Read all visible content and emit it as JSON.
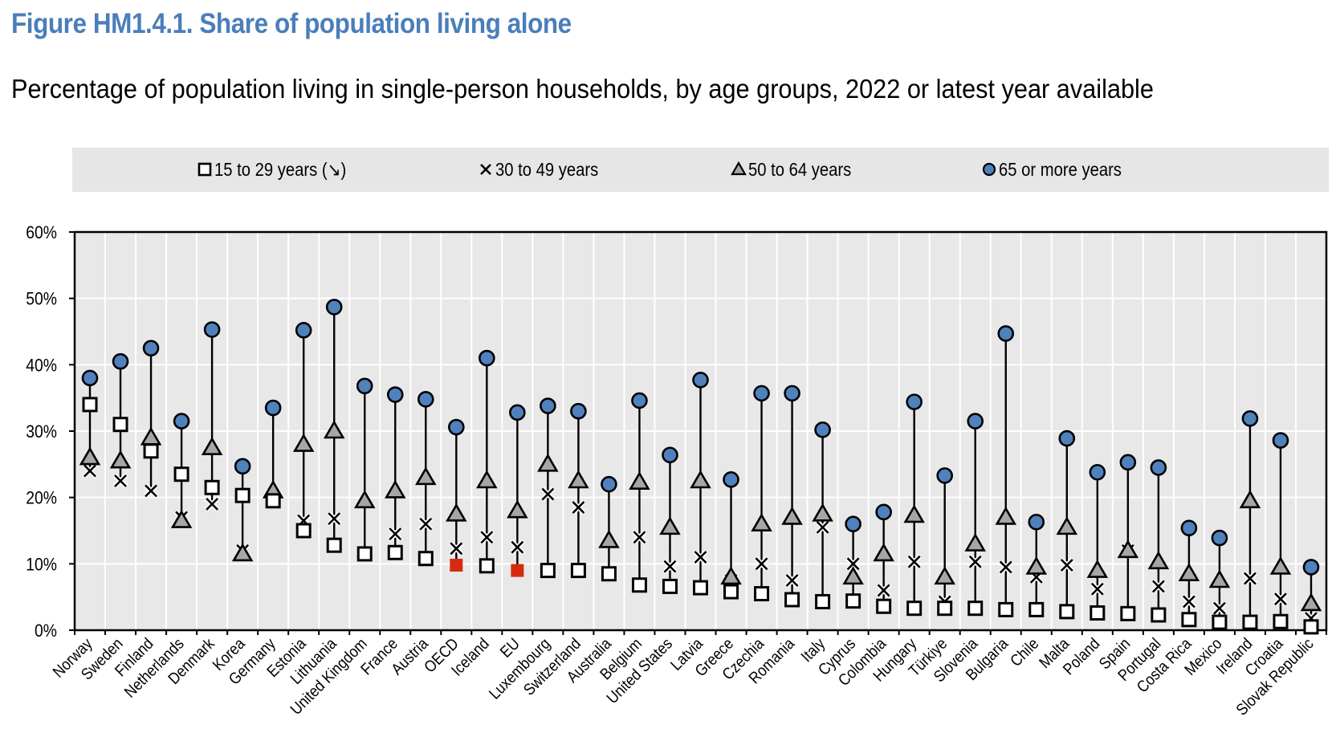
{
  "chart_data": {
    "type": "scatter",
    "title": "Figure HM1.4.1. Share of population living alone",
    "subtitle": "Percentage of population living in single-person households, by age groups, 2022 or latest year available",
    "ylim": [
      0,
      60
    ],
    "yticks": [
      "0%",
      "10%",
      "20%",
      "30%",
      "40%",
      "50%",
      "60%"
    ],
    "grid": true,
    "legend_position": "top",
    "legend": [
      "15 to 29 years (↘)",
      "30 to 49 years",
      "50 to 64 years",
      "65 or more years"
    ],
    "highlight_color": "#d52b0f",
    "circle_color": "#4f81bd",
    "triangle_color": "#a6a6a6",
    "highlighted_categories": [
      "OECD",
      "EU"
    ],
    "categories": [
      "Norway",
      "Sweden",
      "Finland",
      "Netherlands",
      "Denmark",
      "Korea",
      "Germany",
      "Estonia",
      "Lithuania",
      "United Kingdom",
      "France",
      "Austria",
      "OECD",
      "Iceland",
      "EU",
      "Luxembourg",
      "Switzerland",
      "Australia",
      "Belgium",
      "United States",
      "Latvia",
      "Greece",
      "Czechia",
      "Romania",
      "Italy",
      "Cyprus",
      "Colombia",
      "Hungary",
      "Türkiye",
      "Slovenia",
      "Bulgaria",
      "Chile",
      "Malta",
      "Poland",
      "Spain",
      "Portugal",
      "Costa Rica",
      "Mexico",
      "Ireland",
      "Croatia",
      "Slovak Republic"
    ],
    "series": [
      {
        "name": "15 to 29 years (↘)",
        "marker": "square",
        "values": [
          34,
          31,
          27,
          23.5,
          21.5,
          20.3,
          19.5,
          15,
          12.8,
          11.5,
          11.7,
          10.8,
          9.8,
          9.7,
          9,
          9,
          9,
          8.5,
          6.8,
          6.6,
          6.4,
          5.8,
          5.5,
          4.6,
          4.3,
          4.4,
          3.6,
          3.3,
          3.3,
          3.3,
          3.1,
          3.1,
          2.8,
          2.6,
          2.5,
          2.3,
          1.6,
          1.2,
          1.2,
          1.3,
          0.5
        ]
      },
      {
        "name": "30 to 49 years",
        "marker": "x",
        "values": [
          24,
          22.5,
          21,
          17,
          19,
          12,
          19.5,
          16.5,
          16.8,
          11.5,
          14.5,
          16,
          12.3,
          14,
          12.5,
          20.5,
          18.5,
          8.7,
          14,
          9.6,
          11,
          7.5,
          10,
          7.5,
          15.5,
          10,
          6,
          10.3,
          4.3,
          10.3,
          9.5,
          8,
          9.8,
          6.2,
          12,
          6.6,
          4.3,
          3.3,
          7.8,
          4.7,
          1.8
        ]
      },
      {
        "name": "50 to 64 years",
        "marker": "triangle",
        "values": [
          26,
          25.5,
          29,
          16.5,
          27.5,
          11.5,
          21,
          28,
          30,
          19.5,
          21,
          23,
          17.5,
          22.5,
          18,
          25,
          22.5,
          13.5,
          22.3,
          15.5,
          22.5,
          8,
          16,
          17,
          17.5,
          8,
          11.5,
          17.3,
          8,
          13,
          17,
          9.5,
          15.5,
          9,
          12,
          10.3,
          8.5,
          7.5,
          19.5,
          9.5,
          4
        ]
      },
      {
        "name": "65 or more years",
        "marker": "circle",
        "values": [
          38,
          40.5,
          42.5,
          31.5,
          45.3,
          24.7,
          33.5,
          45.2,
          48.7,
          36.8,
          35.5,
          34.8,
          30.6,
          41,
          32.8,
          33.8,
          33,
          22,
          34.6,
          26.4,
          37.7,
          22.7,
          35.7,
          35.7,
          30.2,
          16,
          17.8,
          34.4,
          23.3,
          31.5,
          44.7,
          16.3,
          28.9,
          23.8,
          25.3,
          24.5,
          15.4,
          13.9,
          31.9,
          28.6,
          9.5
        ]
      }
    ]
  }
}
